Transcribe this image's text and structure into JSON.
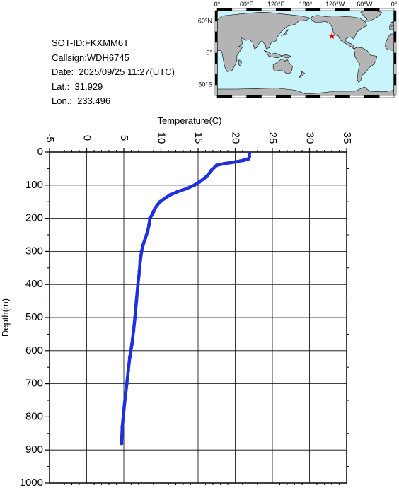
{
  "info": {
    "sot_id": "SOT-ID:FKXMM6T",
    "callsign": "Callsign:WDH6745",
    "date": "Date:  2025/09/25 11:27(UTC)",
    "lat": "Lat.:  31.929",
    "lon": "Lon.:  233.496"
  },
  "map": {
    "lon_labels": [
      "0°",
      "60°E",
      "120°E",
      "180°",
      "120°W",
      "60°W",
      "0°"
    ],
    "lat_labels": [
      "60°N",
      "0°",
      "60°S"
    ],
    "ocean_color": "#c8f5fb",
    "land_color": "#b4b4b4",
    "marker_color": "#ff0000",
    "marker_lon": 233.496,
    "marker_lat": 31.929
  },
  "chart_data": {
    "type": "line",
    "title": "",
    "xlabel": "Temperature(C)",
    "ylabel": "Depth(m)",
    "xlim": [
      -5,
      35
    ],
    "ylim": [
      0,
      1000
    ],
    "y_inverted": true,
    "x_ticks": [
      -5,
      0,
      5,
      10,
      15,
      20,
      25,
      30,
      35
    ],
    "y_ticks": [
      0,
      100,
      200,
      300,
      400,
      500,
      600,
      700,
      800,
      900,
      1000
    ],
    "grid": true,
    "line_color": "#1f2fe0",
    "series": [
      {
        "x": [
          21.9,
          21.9,
          21.8,
          21.1,
          20.0,
          18.5,
          17.5,
          16.8,
          16.3,
          15.8,
          15.2,
          14.5,
          13.5,
          12.2,
          11.2,
          10.5,
          9.9,
          9.5,
          9.2,
          9.0,
          8.8,
          8.5,
          8.4,
          8.2,
          7.9,
          7.6,
          7.4,
          7.2,
          7.1,
          6.9,
          6.7,
          6.5,
          6.3,
          6.1,
          5.8,
          5.6,
          5.4,
          5.2,
          5.0,
          4.8,
          4.7
        ],
        "y": [
          5,
          15,
          20,
          25,
          30,
          35,
          40,
          55,
          70,
          80,
          90,
          100,
          110,
          120,
          130,
          140,
          150,
          160,
          170,
          180,
          190,
          200,
          220,
          240,
          260,
          280,
          300,
          330,
          360,
          400,
          450,
          500,
          540,
          580,
          620,
          660,
          700,
          740,
          780,
          830,
          880
        ]
      }
    ]
  }
}
